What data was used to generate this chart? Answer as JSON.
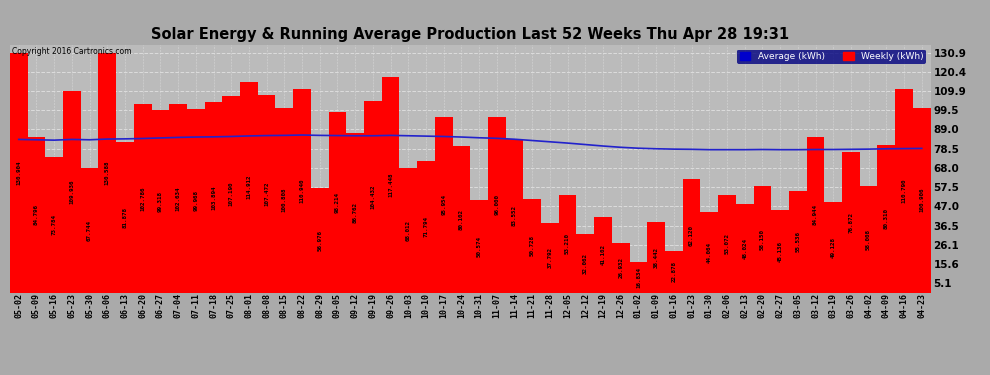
{
  "title": "Solar Energy & Running Average Production Last 52 Weeks Thu Apr 28 19:31",
  "copyright": "Copyright 2016 Cartronics.com",
  "bar_color": "#ff0000",
  "avg_line_color": "#2222cc",
  "fig_bg_color": "#aaaaaa",
  "plot_bg_color": "#bbbbbb",
  "grid_color": "#dddddd",
  "yticks": [
    5.1,
    15.6,
    26.1,
    36.5,
    47.0,
    57.5,
    68.0,
    78.5,
    89.0,
    99.5,
    109.9,
    120.4,
    130.9
  ],
  "categories": [
    "05-02",
    "05-09",
    "05-16",
    "05-23",
    "05-30",
    "06-06",
    "06-13",
    "06-20",
    "06-27",
    "07-04",
    "07-11",
    "07-18",
    "07-25",
    "08-01",
    "08-08",
    "08-15",
    "08-22",
    "08-29",
    "09-05",
    "09-12",
    "09-19",
    "09-26",
    "10-03",
    "10-10",
    "10-17",
    "10-24",
    "10-31",
    "11-07",
    "11-14",
    "11-21",
    "11-28",
    "12-05",
    "12-12",
    "12-19",
    "12-26",
    "01-02",
    "01-09",
    "01-16",
    "01-23",
    "01-30",
    "02-06",
    "02-13",
    "02-20",
    "02-27",
    "03-05",
    "03-12",
    "03-19",
    "03-26",
    "04-02",
    "04-09",
    "04-16",
    "04-23"
  ],
  "weekly_values": [
    130.904,
    84.796,
    73.784,
    109.936,
    67.744,
    130.588,
    81.878,
    102.786,
    99.318,
    102.634,
    99.968,
    103.894,
    107.19,
    114.912,
    107.472,
    100.808,
    110.94,
    56.976,
    98.214,
    86.762,
    104.432,
    117.448,
    68.012,
    71.794,
    95.954,
    80.102,
    50.574,
    96.0,
    83.552,
    50.728,
    37.792,
    53.21,
    32.062,
    41.102,
    26.932,
    16.834,
    38.442,
    22.878,
    62.12,
    44.064,
    53.072,
    48.024,
    58.15,
    45.136,
    55.536,
    84.944,
    49.128,
    76.872,
    58.008,
    80.31,
    110.79,
    100.906
  ],
  "avg_values": [
    83.5,
    83.3,
    83.1,
    83.5,
    83.3,
    83.7,
    83.8,
    84.0,
    84.3,
    84.6,
    84.8,
    84.9,
    85.1,
    85.4,
    85.6,
    85.7,
    85.9,
    85.7,
    85.6,
    85.5,
    85.5,
    85.7,
    85.5,
    85.3,
    85.1,
    84.8,
    84.4,
    84.1,
    83.6,
    82.9,
    82.2,
    81.5,
    80.7,
    79.9,
    79.2,
    78.7,
    78.4,
    78.2,
    78.1,
    77.9,
    77.9,
    77.9,
    78.0,
    77.9,
    77.9,
    78.0,
    78.0,
    78.1,
    78.2,
    78.4,
    78.5,
    78.6
  ],
  "legend_avg_bg": "#0000cc",
  "legend_weekly_bg": "#ff0000",
  "ylim_min": 0,
  "ylim_max": 135
}
